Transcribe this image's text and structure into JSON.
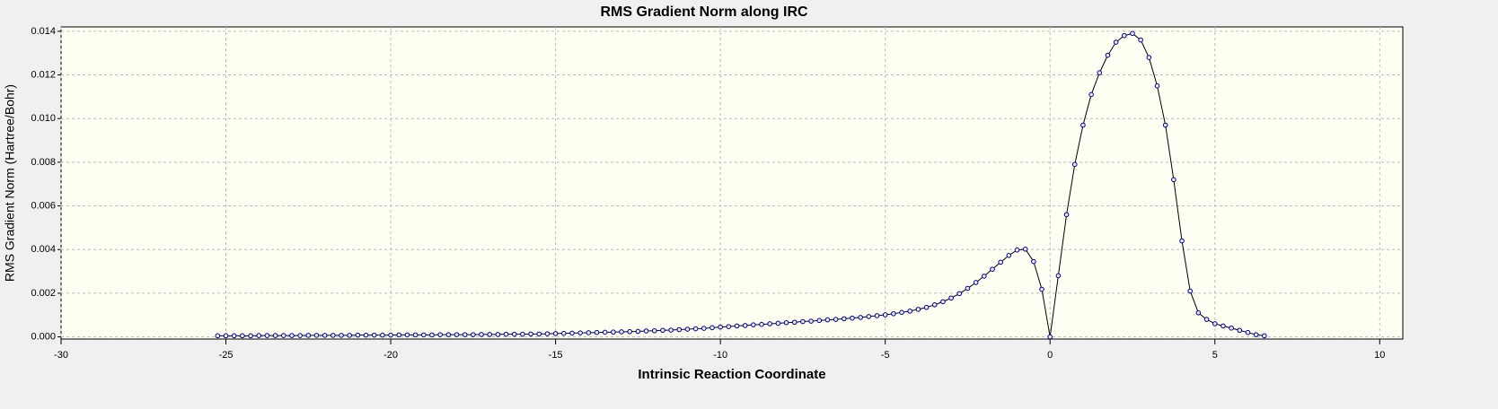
{
  "chart_data": {
    "type": "line",
    "title": "RMS Gradient Norm along IRC",
    "x_label": "Intrinsic Reaction Coordinate",
    "y_label": "RMS Gradient Norm (Hartree/Bohr)",
    "grid": true,
    "xlim": [
      -30,
      10.7
    ],
    "xticks": [
      -30,
      -25,
      -20,
      -15,
      -10,
      -5,
      0,
      5,
      10
    ],
    "ylim": [
      -0.0001,
      0.0142
    ],
    "yticks": [
      {
        "value": 0,
        "label": "0.000"
      },
      {
        "value": 0.002,
        "label": "0.002"
      },
      {
        "value": 0.004,
        "label": "0.004"
      },
      {
        "value": 0.006,
        "label": "0.006"
      },
      {
        "value": 0.008,
        "label": "0.008"
      },
      {
        "value": 0.01,
        "label": "0.010"
      },
      {
        "value": 0.012,
        "label": "0.012"
      },
      {
        "value": 0.014,
        "label": "0.014"
      }
    ],
    "x": [
      -25.25,
      -25,
      -24.75,
      -24.5,
      -24.25,
      -24,
      -23.75,
      -23.5,
      -23.25,
      -23,
      -22.75,
      -22.5,
      -22.25,
      -22,
      -21.75,
      -21.5,
      -21.25,
      -21,
      -20.75,
      -20.5,
      -20.25,
      -20,
      -19.75,
      -19.5,
      -19.25,
      -19,
      -18.75,
      -18.5,
      -18.25,
      -18,
      -17.75,
      -17.5,
      -17.25,
      -17,
      -16.75,
      -16.5,
      -16.25,
      -16,
      -15.75,
      -15.5,
      -15.25,
      -15,
      -14.75,
      -14.5,
      -14.25,
      -14,
      -13.75,
      -13.5,
      -13.25,
      -13,
      -12.75,
      -12.5,
      -12.25,
      -12,
      -11.75,
      -11.5,
      -11.25,
      -11,
      -10.75,
      -10.5,
      -10.25,
      -10,
      -9.75,
      -9.5,
      -9.25,
      -9,
      -8.75,
      -8.5,
      -8.25,
      -8,
      -7.75,
      -7.5,
      -7.25,
      -7,
      -6.75,
      -6.5,
      -6.25,
      -6,
      -5.75,
      -5.5,
      -5.25,
      -5,
      -4.75,
      -4.5,
      -4.25,
      -4,
      -3.75,
      -3.5,
      -3.25,
      -3,
      -2.75,
      -2.5,
      -2.25,
      -2,
      -1.75,
      -1.5,
      -1.25,
      -1,
      -0.75,
      -0.5,
      -0.25,
      0,
      0.25,
      0.5,
      0.75,
      1,
      1.25,
      1.5,
      1.75,
      2,
      2.25,
      2.5,
      2.75,
      3,
      3.25,
      3.5,
      3.75,
      4,
      4.25,
      4.5,
      4.75,
      5,
      5.25,
      5.5,
      5.75,
      6,
      6.25,
      6.5
    ],
    "series": [
      {
        "color": "#000080",
        "values": [
          5e-05,
          5e-05,
          5e-05,
          5e-05,
          5e-05,
          6e-05,
          6e-05,
          6e-05,
          6e-05,
          6e-05,
          6e-05,
          7e-05,
          7e-05,
          7e-05,
          7e-05,
          7e-05,
          7e-05,
          8e-05,
          8e-05,
          8e-05,
          8e-05,
          8e-05,
          9e-05,
          9e-05,
          9e-05,
          9e-05,
          9e-05,
          0.0001,
          0.0001,
          0.0001,
          0.0001,
          0.0001,
          0.00011,
          0.00011,
          0.00011,
          0.00012,
          0.00012,
          0.00012,
          0.00013,
          0.00013,
          0.00014,
          0.00015,
          0.00016,
          0.00017,
          0.00018,
          0.00019,
          0.0002,
          0.00021,
          0.00022,
          0.00023,
          0.00024,
          0.00025,
          0.00027,
          0.00028,
          0.0003,
          0.00031,
          0.00033,
          0.00035,
          0.00037,
          0.00039,
          0.00042,
          0.00045,
          0.00047,
          0.0005,
          0.00052,
          0.00055,
          0.00057,
          0.0006,
          0.00062,
          0.00065,
          0.00067,
          0.0007,
          0.00072,
          0.00075,
          0.00078,
          0.0008,
          0.00083,
          0.00086,
          0.00089,
          0.00093,
          0.00097,
          0.00101,
          0.00106,
          0.00112,
          0.00118,
          0.00126,
          0.00135,
          0.00147,
          0.00161,
          0.00178,
          0.00198,
          0.00222,
          0.00249,
          0.00278,
          0.0031,
          0.00342,
          0.00373,
          0.00398,
          0.00402,
          0.00345,
          0.00218,
          0,
          0.0028,
          0.0056,
          0.0079,
          0.0097,
          0.0111,
          0.0121,
          0.0129,
          0.0135,
          0.0138,
          0.0139,
          0.0136,
          0.0128,
          0.0115,
          0.0097,
          0.0072,
          0.0044,
          0.0021,
          0.0011,
          0.0008,
          0.0006,
          0.0005,
          0.0004,
          0.0003,
          0.0002,
          0.0001,
          5e-05
        ]
      }
    ]
  }
}
